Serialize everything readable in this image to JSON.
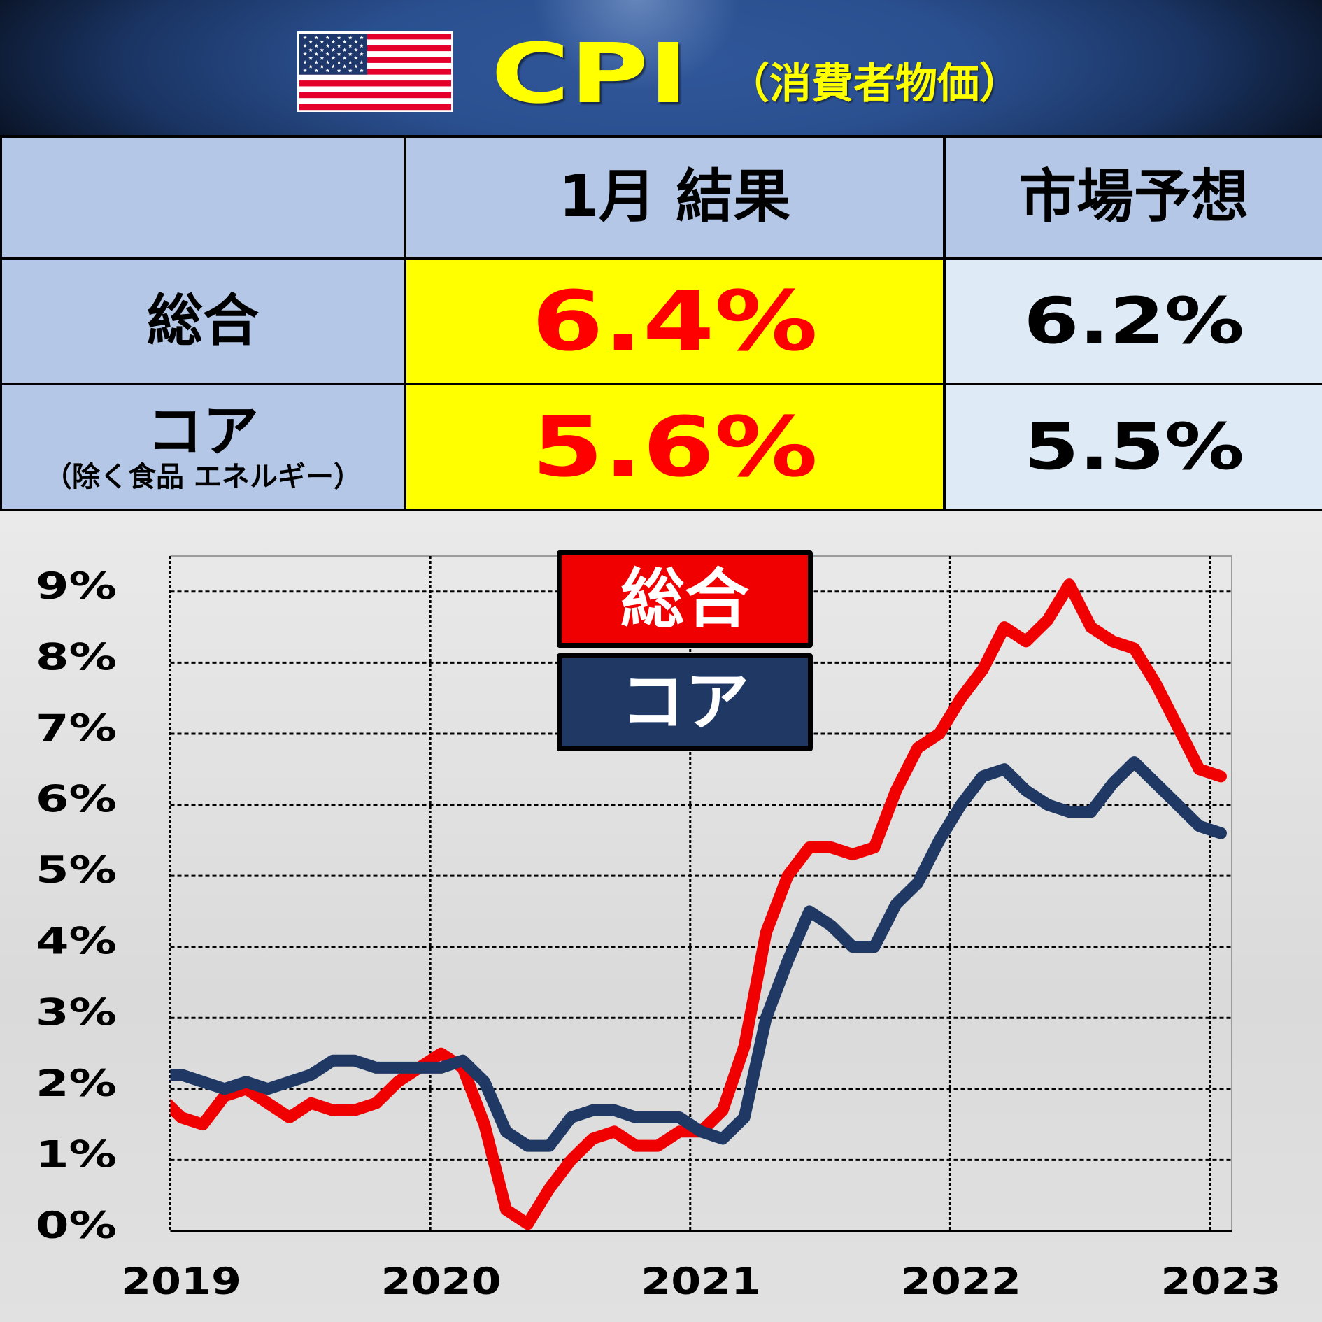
{
  "header": {
    "flag_icon": "us-flag-icon",
    "title": "CPI",
    "subtitle": "（消費者物価）"
  },
  "table": {
    "columns": [
      "",
      "1月 結果",
      "市場予想"
    ],
    "rows": [
      {
        "label": "総合",
        "sublabel": "",
        "result": "6.4%",
        "forecast": "6.2%"
      },
      {
        "label": "コア",
        "sublabel": "（除く食品 エネルギー）",
        "result": "5.6%",
        "forecast": "5.5%"
      }
    ]
  },
  "legend": [
    {
      "label": "総合",
      "color": "#F00000"
    },
    {
      "label": "コア",
      "color": "#1F3864"
    }
  ],
  "colors": {
    "title": "#FFFF00",
    "table_header_bg": "#B4C7E7",
    "result_bg": "#FFFF00",
    "result_text": "#FF0000",
    "forecast_bg": "#DEEBF7"
  },
  "chart_data": {
    "type": "line",
    "title": "",
    "xlabel": "",
    "ylabel": "",
    "ylim": [
      0,
      9.5
    ],
    "yticks": [
      0,
      1,
      2,
      3,
      4,
      5,
      6,
      7,
      8,
      9
    ],
    "ytick_labels": [
      "0%",
      "1%",
      "2%",
      "3%",
      "4%",
      "5%",
      "6%",
      "7%",
      "8%",
      "9%"
    ],
    "xlim": [
      "2019-01",
      "2023-01"
    ],
    "xtick_labels": [
      "2019",
      "2020",
      "2021",
      "2022",
      "2023"
    ],
    "xtick_positions": [
      "2019-01",
      "2020-01",
      "2021-01",
      "2022-01",
      "2023-01"
    ],
    "grid": true,
    "legend_position": "inside top-center",
    "x": [
      "2018-12",
      "2019-01",
      "2019-02",
      "2019-03",
      "2019-04",
      "2019-05",
      "2019-06",
      "2019-07",
      "2019-08",
      "2019-09",
      "2019-10",
      "2019-11",
      "2019-12",
      "2020-01",
      "2020-02",
      "2020-03",
      "2020-04",
      "2020-05",
      "2020-06",
      "2020-07",
      "2020-08",
      "2020-09",
      "2020-10",
      "2020-11",
      "2020-12",
      "2021-01",
      "2021-02",
      "2021-03",
      "2021-04",
      "2021-05",
      "2021-06",
      "2021-07",
      "2021-08",
      "2021-09",
      "2021-10",
      "2021-11",
      "2021-12",
      "2022-01",
      "2022-02",
      "2022-03",
      "2022-04",
      "2022-05",
      "2022-06",
      "2022-07",
      "2022-08",
      "2022-09",
      "2022-10",
      "2022-11",
      "2022-12",
      "2023-01"
    ],
    "series": [
      {
        "id": "headline",
        "name": "総合",
        "color": "#F00000",
        "values": [
          1.9,
          1.6,
          1.5,
          1.9,
          2.0,
          1.8,
          1.6,
          1.8,
          1.7,
          1.7,
          1.8,
          2.1,
          2.3,
          2.5,
          2.3,
          1.5,
          0.3,
          0.1,
          0.6,
          1.0,
          1.3,
          1.4,
          1.2,
          1.2,
          1.4,
          1.4,
          1.7,
          2.6,
          4.2,
          5.0,
          5.4,
          5.4,
          5.3,
          5.4,
          6.2,
          6.8,
          7.0,
          7.5,
          7.9,
          8.5,
          8.3,
          8.6,
          9.1,
          8.5,
          8.3,
          8.2,
          7.7,
          7.1,
          6.5,
          6.4
        ]
      },
      {
        "id": "core",
        "name": "コア",
        "color": "#1F3864",
        "values": [
          2.2,
          2.2,
          2.1,
          2.0,
          2.1,
          2.0,
          2.1,
          2.2,
          2.4,
          2.4,
          2.3,
          2.3,
          2.3,
          2.3,
          2.4,
          2.1,
          1.4,
          1.2,
          1.2,
          1.6,
          1.7,
          1.7,
          1.6,
          1.6,
          1.6,
          1.4,
          1.3,
          1.6,
          3.0,
          3.8,
          4.5,
          4.3,
          4.0,
          4.0,
          4.6,
          4.9,
          5.5,
          6.0,
          6.4,
          6.5,
          6.2,
          6.0,
          5.9,
          5.9,
          6.3,
          6.6,
          6.3,
          6.0,
          5.7,
          5.6
        ]
      }
    ]
  }
}
